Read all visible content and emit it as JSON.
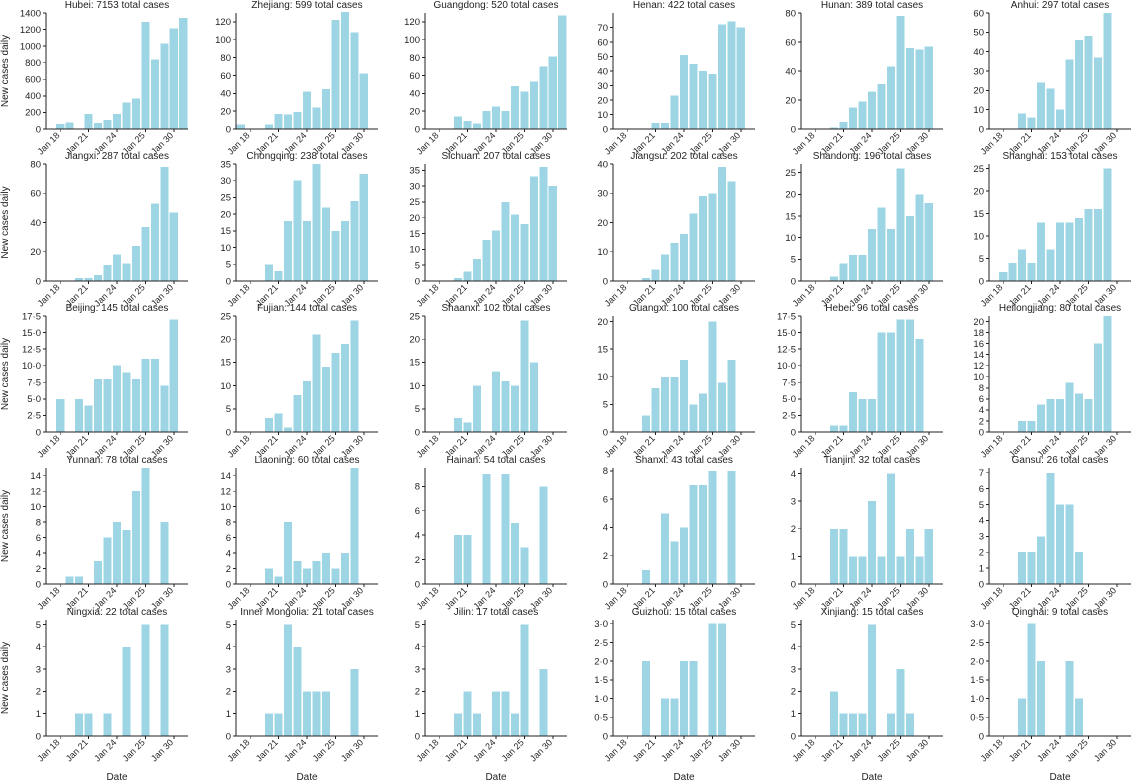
{
  "figure": {
    "y_axis_label": "New cases daily",
    "x_axis_label": "Date",
    "date_ticks": [
      "Jan 18",
      "Jan 21",
      "Jan 24",
      "Jan 25",
      "Jan 30"
    ],
    "bar_color": "#9dd5e4"
  },
  "chart_data": [
    {
      "type": "bar",
      "title": "Hubei: 7153 total cases",
      "ylim": [
        0,
        1400
      ],
      "yticks": [
        "0",
        "200",
        "400",
        "600",
        "800",
        "1000",
        "1200",
        "1400"
      ],
      "values": [
        0,
        60,
        80,
        0,
        180,
        70,
        110,
        180,
        320,
        370,
        1290,
        840,
        1030,
        1210,
        1340
      ]
    },
    {
      "type": "bar",
      "title": "Zhejiang: 599 total cases",
      "ylim": [
        0,
        130
      ],
      "yticks": [
        "0",
        "20",
        "40",
        "60",
        "80",
        "100",
        "120"
      ],
      "values": [
        5,
        0,
        0,
        5,
        17,
        16,
        19,
        42,
        24,
        45,
        122,
        131,
        108,
        62,
        0
      ]
    },
    {
      "type": "bar",
      "title": "Guangdong: 520 total cases",
      "ylim": [
        0,
        130
      ],
      "yticks": [
        "0",
        "20",
        "40",
        "60",
        "80",
        "100",
        "120"
      ],
      "values": [
        0,
        0,
        0,
        14,
        9,
        6,
        20,
        25,
        20,
        48,
        42,
        53,
        70,
        81,
        127
      ]
    },
    {
      "type": "bar",
      "title": "Henan: 422 total cases",
      "ylim": [
        0,
        80
      ],
      "yticks": [
        "0",
        "10",
        "20",
        "30",
        "40",
        "50",
        "60",
        "70"
      ],
      "values": [
        0,
        0,
        0,
        0,
        4,
        4,
        23,
        51,
        45,
        40,
        38,
        72,
        74,
        70,
        0
      ]
    },
    {
      "type": "bar",
      "title": "Hunan: 389 total cases",
      "ylim": [
        0,
        80
      ],
      "yticks": [
        "0",
        "20",
        "40",
        "60",
        "80"
      ],
      "values": [
        0,
        0,
        0,
        1,
        5,
        15,
        19,
        26,
        31,
        43,
        78,
        56,
        55,
        57,
        0
      ]
    },
    {
      "type": "bar",
      "title": "Anhui: 297 total cases",
      "ylim": [
        0,
        60
      ],
      "yticks": [
        "0",
        "10",
        "20",
        "30",
        "40",
        "50",
        "60"
      ],
      "values": [
        0,
        0,
        0,
        8,
        6,
        24,
        21,
        10,
        36,
        46,
        48,
        37,
        60,
        0,
        0
      ]
    },
    {
      "type": "bar",
      "title": "Jiangxi: 287 total cases",
      "ylim": [
        0,
        80
      ],
      "yticks": [
        "0",
        "20",
        "40",
        "60",
        "80"
      ],
      "values": [
        0,
        0,
        0,
        2,
        2,
        4,
        11,
        18,
        12,
        24,
        37,
        53,
        78,
        47,
        0
      ]
    },
    {
      "type": "bar",
      "title": "Chongqing: 238 total cases",
      "ylim": [
        0,
        35
      ],
      "yticks": [
        "0",
        "5",
        "10",
        "15",
        "20",
        "25",
        "30",
        "35"
      ],
      "values": [
        0,
        0,
        0,
        5,
        3,
        18,
        30,
        18,
        35,
        22,
        15,
        18,
        24,
        32,
        0
      ]
    },
    {
      "type": "bar",
      "title": "Sichuan: 207 total cases",
      "ylim": [
        0,
        37
      ],
      "yticks": [
        "0",
        "5",
        "10",
        "15",
        "20",
        "25",
        "30",
        "35"
      ],
      "values": [
        0,
        0,
        0,
        1,
        3,
        7,
        13,
        16,
        25,
        21,
        18,
        33,
        36,
        30,
        0
      ]
    },
    {
      "type": "bar",
      "title": "Jiangsu: 202 total cases",
      "ylim": [
        0,
        40
      ],
      "yticks": [
        "0",
        "10",
        "20",
        "30",
        "40"
      ],
      "values": [
        0,
        0,
        0,
        1,
        4,
        9,
        13,
        16,
        23,
        29,
        30,
        39,
        34,
        0,
        0
      ]
    },
    {
      "type": "bar",
      "title": "Shandong: 196 total cases",
      "ylim": [
        0,
        27
      ],
      "yticks": [
        "0",
        "5",
        "10",
        "15",
        "20",
        "25"
      ],
      "values": [
        0,
        0,
        0,
        1,
        4,
        6,
        6,
        12,
        17,
        12,
        26,
        15,
        20,
        18,
        0
      ]
    },
    {
      "type": "bar",
      "title": "Shanghai: 153 total cases",
      "ylim": [
        0,
        26
      ],
      "yticks": [
        "0",
        "5",
        "10",
        "15",
        "20",
        "25"
      ],
      "values": [
        0,
        2,
        4,
        7,
        4,
        13,
        7,
        13,
        13,
        14,
        16,
        16,
        25,
        0,
        0
      ]
    },
    {
      "type": "bar",
      "title": "Beijing: 145 total cases",
      "ylim": [
        0,
        17.5
      ],
      "yticks": [
        "0",
        "2·5",
        "5·0",
        "7·5",
        "10·0",
        "12·5",
        "15·0",
        "17·5"
      ],
      "values": [
        0,
        5,
        0,
        5,
        4,
        8,
        8,
        10,
        9,
        8,
        11,
        11,
        7,
        17,
        0
      ]
    },
    {
      "type": "bar",
      "title": "Fujian: 144 total cases",
      "ylim": [
        0,
        25
      ],
      "yticks": [
        "0",
        "5",
        "10",
        "15",
        "20",
        "25"
      ],
      "values": [
        0,
        0,
        0,
        3,
        4,
        1,
        8,
        11,
        21,
        14,
        17,
        19,
        24,
        0,
        0
      ]
    },
    {
      "type": "bar",
      "title": "Shaanxi: 102 total cases",
      "ylim": [
        0,
        25
      ],
      "yticks": [
        "0",
        "5",
        "10",
        "15",
        "20",
        "25"
      ],
      "values": [
        0,
        0,
        0,
        3,
        2,
        10,
        0,
        13,
        11,
        10,
        24,
        15,
        0,
        0,
        0
      ]
    },
    {
      "type": "bar",
      "title": "Guangxi: 100 total cases",
      "ylim": [
        0,
        21
      ],
      "yticks": [
        "0",
        "5",
        "10",
        "15",
        "20"
      ],
      "values": [
        0,
        0,
        0,
        3,
        8,
        10,
        10,
        13,
        5,
        7,
        20,
        9,
        13,
        0,
        0
      ]
    },
    {
      "type": "bar",
      "title": "Hebei: 96 total cases",
      "ylim": [
        0,
        17.5
      ],
      "yticks": [
        "0",
        "2·5",
        "5·0",
        "7·5",
        "10·0",
        "12·5",
        "15·0",
        "17·5"
      ],
      "values": [
        0,
        0,
        0,
        1,
        1,
        6,
        5,
        5,
        15,
        15,
        17,
        17,
        14,
        0,
        0
      ]
    },
    {
      "type": "bar",
      "title": "Heilongjiang: 80 total cases",
      "ylim": [
        0,
        21
      ],
      "yticks": [
        "0",
        "2",
        "4",
        "6",
        "8",
        "10",
        "12",
        "14",
        "16",
        "18",
        "20"
      ],
      "values": [
        0,
        0,
        0,
        2,
        2,
        5,
        6,
        6,
        9,
        7,
        6,
        16,
        21,
        0,
        0
      ]
    },
    {
      "type": "bar",
      "title": "Yunnan: 78 total cases",
      "ylim": [
        0,
        15
      ],
      "yticks": [
        "0",
        "2",
        "4",
        "6",
        "8",
        "10",
        "12",
        "14"
      ],
      "values": [
        0,
        0,
        1,
        1,
        0,
        3,
        6,
        8,
        7,
        12,
        15,
        0,
        8,
        0,
        0
      ]
    },
    {
      "type": "bar",
      "title": "Liaoning: 60 total cases",
      "ylim": [
        0,
        15
      ],
      "yticks": [
        "0",
        "2",
        "4",
        "6",
        "8",
        "10",
        "12",
        "14"
      ],
      "values": [
        0,
        0,
        0,
        2,
        1,
        8,
        3,
        2,
        3,
        4,
        2,
        4,
        15,
        0,
        0
      ]
    },
    {
      "type": "bar",
      "title": "Hainan: 54 total cases",
      "ylim": [
        0,
        9.5
      ],
      "yticks": [
        "0",
        "2",
        "4",
        "6",
        "8"
      ],
      "values": [
        0,
        0,
        0,
        4,
        4,
        0,
        9,
        0,
        9,
        5,
        3,
        0,
        8,
        0,
        0
      ]
    },
    {
      "type": "bar",
      "title": "Shanxi: 43 total cases",
      "ylim": [
        0,
        8.2
      ],
      "yticks": [
        "0",
        "2",
        "4",
        "6",
        "8"
      ],
      "values": [
        0,
        0,
        0,
        1,
        0,
        5,
        3,
        4,
        7,
        7,
        8,
        0,
        8,
        0,
        0
      ]
    },
    {
      "type": "bar",
      "title": "Tianjin: 32 total cases",
      "ylim": [
        0,
        4.2
      ],
      "yticks": [
        "0",
        "1",
        "2",
        "3",
        "4"
      ],
      "values": [
        0,
        0,
        0,
        2,
        2,
        1,
        1,
        3,
        1,
        4,
        1,
        2,
        1,
        2,
        0
      ]
    },
    {
      "type": "bar",
      "title": "Gansu: 26 total cases",
      "ylim": [
        0,
        7.3
      ],
      "yticks": [
        "0",
        "1",
        "2",
        "3",
        "4",
        "5",
        "6",
        "7"
      ],
      "values": [
        0,
        0,
        0,
        2,
        2,
        3,
        7,
        5,
        5,
        2,
        0,
        0,
        0,
        0,
        0
      ]
    },
    {
      "type": "bar",
      "title": "Ningxia: 22 total cases",
      "ylim": [
        0,
        5.2
      ],
      "yticks": [
        "0",
        "1",
        "2",
        "3",
        "4",
        "5"
      ],
      "values": [
        0,
        0,
        0,
        1,
        1,
        0,
        1,
        0,
        4,
        0,
        5,
        0,
        5,
        0,
        0
      ]
    },
    {
      "type": "bar",
      "title": "Inner Mongolia: 21 total cases",
      "ylim": [
        0,
        5.2
      ],
      "yticks": [
        "0",
        "1",
        "2",
        "3",
        "4",
        "5"
      ],
      "values": [
        0,
        0,
        0,
        1,
        1,
        5,
        4,
        2,
        2,
        2,
        0,
        0,
        3,
        0,
        0
      ]
    },
    {
      "type": "bar",
      "title": "Jilin: 17 total cases",
      "ylim": [
        0,
        5.2
      ],
      "yticks": [
        "0",
        "1",
        "2",
        "3",
        "4",
        "5"
      ],
      "values": [
        0,
        0,
        0,
        1,
        2,
        1,
        0,
        2,
        2,
        1,
        5,
        0,
        3,
        0,
        0
      ]
    },
    {
      "type": "bar",
      "title": "Guizhou: 15 total cases",
      "ylim": [
        0,
        3.1
      ],
      "yticks": [
        "0",
        "0·5",
        "1·0",
        "1·5",
        "2·0",
        "2·5",
        "3·0"
      ],
      "values": [
        0,
        0,
        0,
        2,
        0,
        1,
        1,
        2,
        2,
        0,
        3,
        3,
        0,
        0,
        0
      ]
    },
    {
      "type": "bar",
      "title": "Xinjiang: 15 total cases",
      "ylim": [
        0,
        5.2
      ],
      "yticks": [
        "0",
        "1",
        "2",
        "3",
        "4",
        "5"
      ],
      "values": [
        0,
        0,
        0,
        2,
        1,
        1,
        1,
        5,
        0,
        1,
        3,
        1,
        0,
        0,
        0
      ]
    },
    {
      "type": "bar",
      "title": "Qinghai: 9 total cases",
      "ylim": [
        0,
        3.1
      ],
      "yticks": [
        "0",
        "0·5",
        "1·0",
        "1·5",
        "2·0",
        "2·5",
        "3·0"
      ],
      "values": [
        0,
        0,
        0,
        1,
        3,
        2,
        0,
        0,
        2,
        1,
        0,
        0,
        0,
        0,
        0
      ]
    }
  ]
}
